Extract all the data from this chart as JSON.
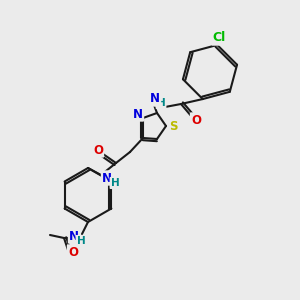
{
  "bg_color": "#ebebeb",
  "bond_color": "#1a1a1a",
  "bond_lw": 1.5,
  "font_size": 8.5,
  "colors": {
    "N": "#0000dd",
    "O": "#dd0000",
    "S": "#bbbb00",
    "Cl": "#00bb00",
    "H": "#008888",
    "C": "#1a1a1a"
  },
  "figsize": [
    3.0,
    3.0
  ],
  "dpi": 100
}
